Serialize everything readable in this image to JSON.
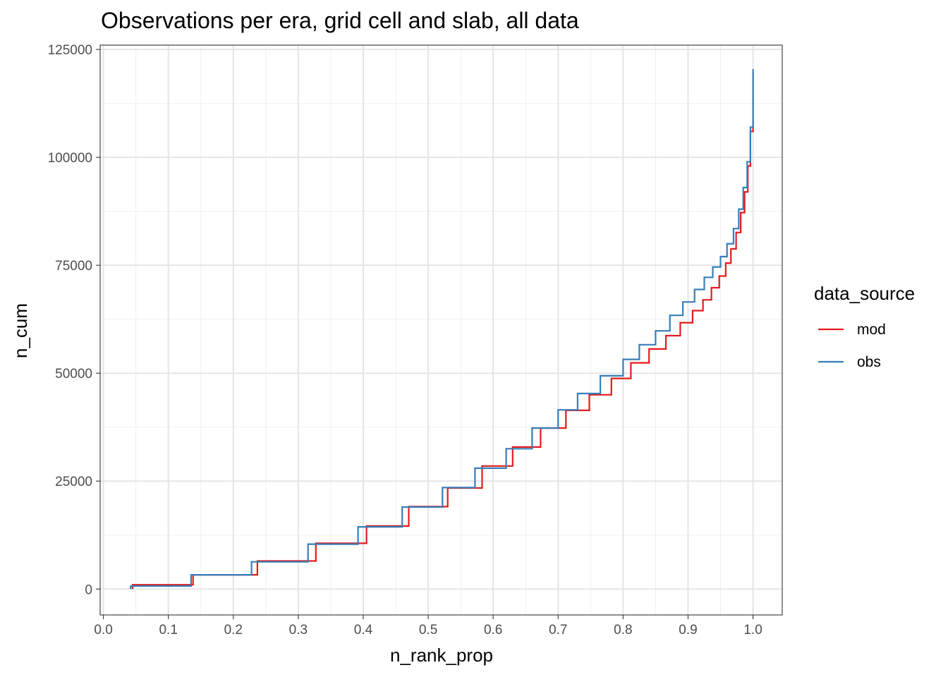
{
  "chart_data": {
    "type": "line",
    "step": true,
    "title": "Observations per era, grid cell and slab, all data",
    "xlabel": "n_rank_prop",
    "ylabel": "n_cum",
    "xlim": [
      -0.005,
      1.045
    ],
    "ylim": [
      -6000,
      126000
    ],
    "x_ticks": [
      0.0,
      0.1,
      0.2,
      0.3,
      0.4,
      0.5,
      0.6,
      0.7,
      0.8,
      0.9,
      1.0
    ],
    "x_tick_labels": [
      "0.0",
      "0.1",
      "0.2",
      "0.3",
      "0.4",
      "0.5",
      "0.6",
      "0.7",
      "0.8",
      "0.9",
      "1.0"
    ],
    "y_ticks": [
      0,
      25000,
      50000,
      75000,
      100000,
      125000
    ],
    "y_tick_labels": [
      "0",
      "25000",
      "50000",
      "75000",
      "100000",
      "125000"
    ],
    "grid": true,
    "legend": {
      "title": "data_source",
      "position": "right"
    },
    "series": [
      {
        "name": "mod",
        "color": "#E41A1C",
        "x": [
          0.045,
          0.138,
          0.237,
          0.327,
          0.405,
          0.47,
          0.53,
          0.583,
          0.63,
          0.673,
          0.712,
          0.748,
          0.782,
          0.812,
          0.84,
          0.866,
          0.888,
          0.907,
          0.923,
          0.936,
          0.948,
          0.958,
          0.966,
          0.974,
          0.981,
          0.987,
          0.992,
          0.996,
          1.0
        ],
        "y": [
          1000,
          3300,
          6500,
          10600,
          14600,
          19100,
          23400,
          28500,
          32900,
          37300,
          41400,
          45000,
          48800,
          52400,
          55600,
          58700,
          61700,
          64500,
          67000,
          69800,
          72500,
          75500,
          78800,
          82600,
          87200,
          92000,
          98000,
          106000,
          119500
        ]
      },
      {
        "name": "obs",
        "color": "#377EB8",
        "x": [
          0.042,
          0.135,
          0.228,
          0.315,
          0.392,
          0.46,
          0.522,
          0.572,
          0.62,
          0.66,
          0.7,
          0.73,
          0.765,
          0.8,
          0.825,
          0.85,
          0.872,
          0.892,
          0.91,
          0.925,
          0.938,
          0.95,
          0.96,
          0.97,
          0.978,
          0.985,
          0.991,
          0.996,
          1.0
        ],
        "y": [
          700,
          3300,
          6300,
          10400,
          14400,
          19000,
          23500,
          28000,
          32500,
          37300,
          41500,
          45300,
          49400,
          53200,
          56600,
          59800,
          63400,
          66500,
          69400,
          72200,
          74600,
          77000,
          80000,
          83500,
          88000,
          93000,
          99000,
          107000,
          120500
        ]
      }
    ]
  }
}
